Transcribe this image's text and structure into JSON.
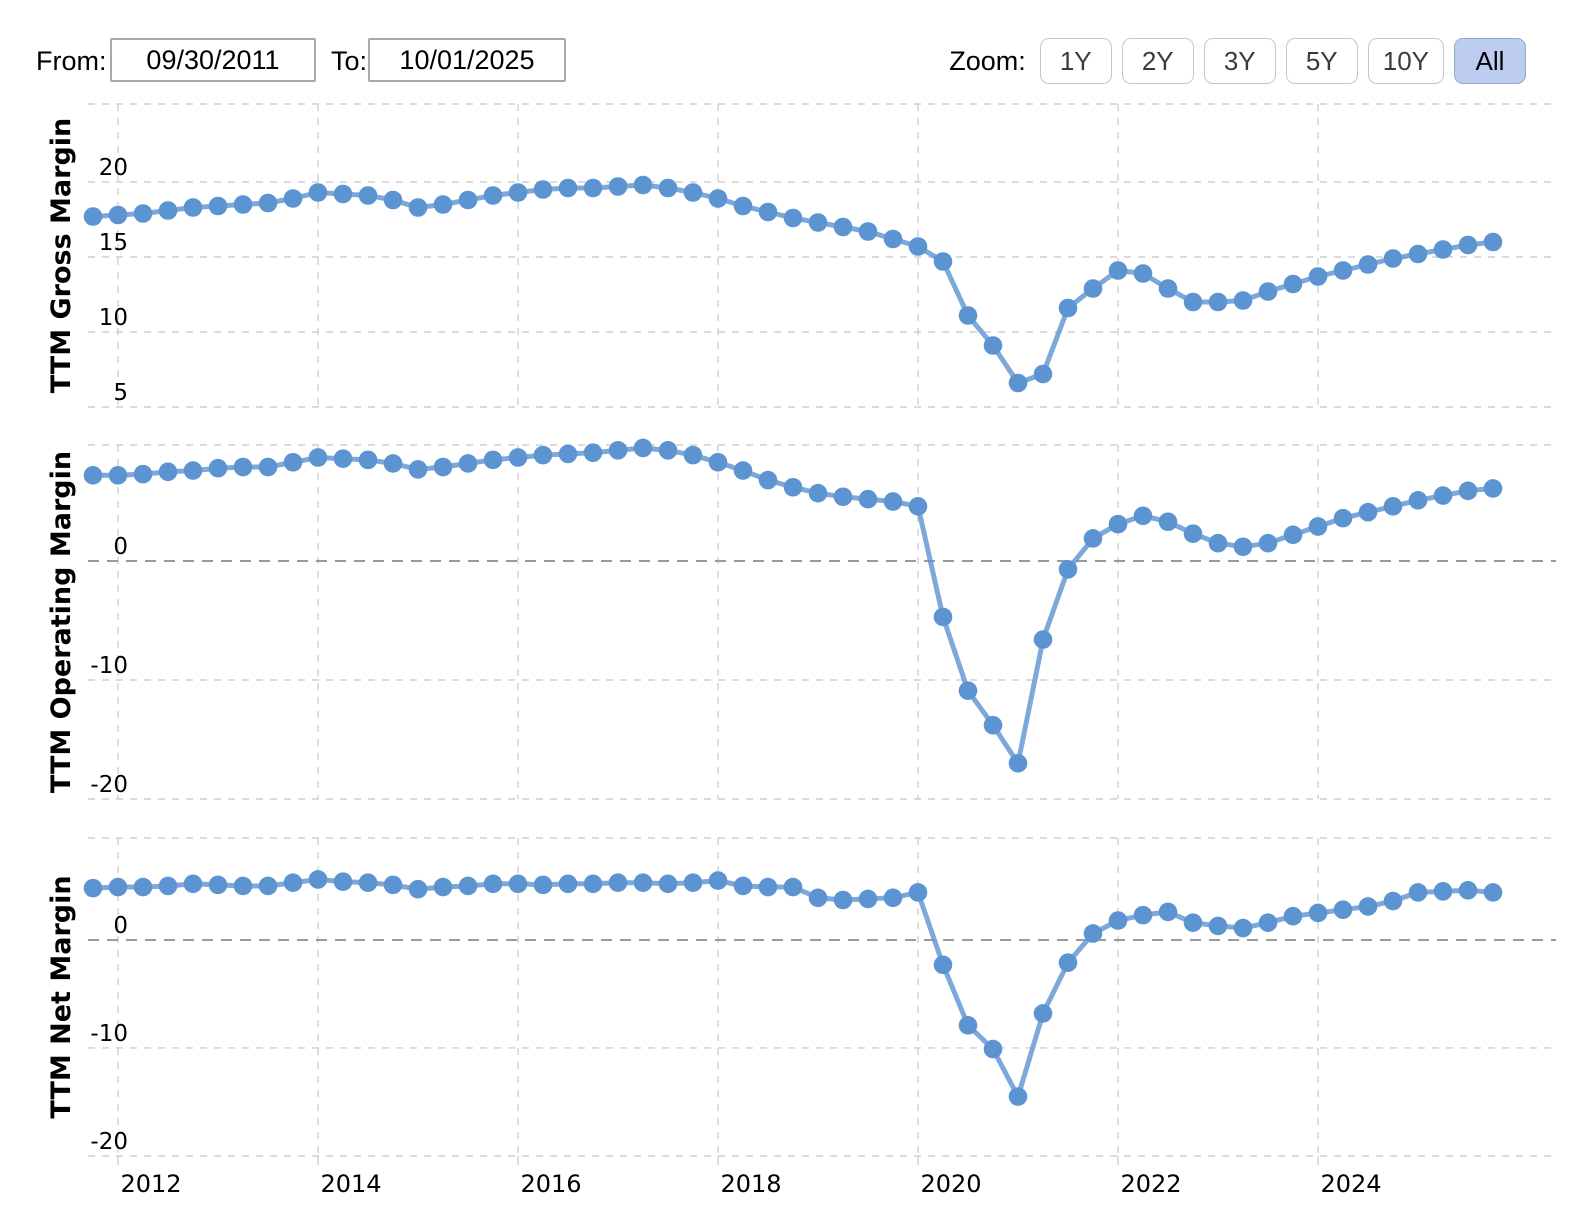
{
  "header": {
    "from_label": "From:",
    "from_value": "09/30/2011",
    "to_label": "To:",
    "to_value": "10/01/2025",
    "zoom_label": "Zoom:",
    "zoom_buttons": [
      {
        "label": "1Y",
        "active": false
      },
      {
        "label": "2Y",
        "active": false
      },
      {
        "label": "3Y",
        "active": false
      },
      {
        "label": "5Y",
        "active": false
      },
      {
        "label": "10Y",
        "active": false
      },
      {
        "label": "All",
        "active": true
      }
    ],
    "active_button_color": "#bccdf1"
  },
  "chart_data": {
    "type": "line",
    "series_color": "#5b94d1",
    "grid_color": "#cfcfcf",
    "zero_line_color": "#9a9a9a",
    "x_unit": "quarter-end dates, TTM values",
    "xticks": [
      2012,
      2014,
      2016,
      2018,
      2020,
      2022,
      2024
    ],
    "xlim": [
      2011.45,
      2026.1
    ],
    "legend": "none",
    "x_years": [
      2011.75,
      2012.0,
      2012.25,
      2012.5,
      2012.75,
      2013.0,
      2013.25,
      2013.5,
      2013.75,
      2014.0,
      2014.25,
      2014.5,
      2014.75,
      2015.0,
      2015.25,
      2015.5,
      2015.75,
      2016.0,
      2016.25,
      2016.5,
      2016.75,
      2017.0,
      2017.25,
      2017.5,
      2017.75,
      2018.0,
      2018.25,
      2018.5,
      2018.75,
      2019.0,
      2019.25,
      2019.5,
      2019.75,
      2020.0,
      2020.25,
      2020.5,
      2020.75,
      2021.0,
      2021.25,
      2021.5,
      2021.75,
      2022.0,
      2022.25,
      2022.5,
      2022.75,
      2023.0,
      2023.25,
      2023.5,
      2023.75,
      2024.0,
      2024.25,
      2024.5,
      2024.75,
      2025.0,
      2025.25,
      2025.5,
      2025.75
    ],
    "charts": [
      {
        "ylabel": "TTM Gross Margin",
        "yticks": [
          20,
          15,
          10,
          5
        ],
        "ylim": [
          5,
          25.2
        ],
        "values": [
          17.7,
          17.8,
          17.9,
          18.1,
          18.3,
          18.4,
          18.5,
          18.6,
          18.9,
          19.3,
          19.2,
          19.1,
          18.8,
          18.3,
          18.5,
          18.8,
          19.1,
          19.3,
          19.5,
          19.6,
          19.6,
          19.7,
          19.8,
          19.6,
          19.3,
          18.9,
          18.4,
          18.0,
          17.6,
          17.3,
          17.0,
          16.7,
          16.2,
          15.7,
          14.7,
          11.1,
          9.1,
          6.6,
          7.2,
          11.6,
          12.9,
          14.1,
          13.9,
          12.9,
          12.0,
          12.0,
          12.1,
          12.7,
          13.2,
          13.7,
          14.1,
          14.5,
          14.9,
          15.2,
          15.5,
          15.8,
          16.0
        ]
      },
      {
        "ylabel": "TTM Operating Margin",
        "yticks": [
          0,
          -10,
          -20
        ],
        "ylim": [
          -20,
          9.75
        ],
        "values": [
          7.2,
          7.2,
          7.3,
          7.5,
          7.6,
          7.8,
          7.9,
          7.9,
          8.3,
          8.7,
          8.6,
          8.5,
          8.2,
          7.7,
          7.9,
          8.2,
          8.5,
          8.7,
          8.9,
          9.0,
          9.1,
          9.3,
          9.5,
          9.3,
          8.9,
          8.3,
          7.6,
          6.8,
          6.2,
          5.7,
          5.4,
          5.2,
          5.0,
          4.6,
          -4.7,
          -10.9,
          -13.8,
          -17.0,
          -6.6,
          -0.7,
          1.9,
          3.1,
          3.8,
          3.3,
          2.3,
          1.5,
          1.2,
          1.5,
          2.2,
          2.9,
          3.6,
          4.1,
          4.6,
          5.1,
          5.5,
          5.9,
          6.1
        ]
      },
      {
        "ylabel": "TTM Net Margin",
        "yticks": [
          0,
          -10,
          -20
        ],
        "ylim": [
          -20,
          9.44
        ],
        "values": [
          4.8,
          4.9,
          4.9,
          5.0,
          5.2,
          5.1,
          5.0,
          5.0,
          5.3,
          5.6,
          5.4,
          5.3,
          5.1,
          4.7,
          4.9,
          5.0,
          5.2,
          5.2,
          5.1,
          5.2,
          5.2,
          5.3,
          5.3,
          5.2,
          5.3,
          5.5,
          5.0,
          4.9,
          4.9,
          3.9,
          3.7,
          3.8,
          3.9,
          4.4,
          -2.3,
          -7.9,
          -10.1,
          -14.5,
          -6.8,
          -2.1,
          0.6,
          1.8,
          2.3,
          2.6,
          1.6,
          1.3,
          1.1,
          1.6,
          2.2,
          2.5,
          2.8,
          3.1,
          3.6,
          4.4,
          4.5,
          4.6,
          4.4
        ]
      }
    ]
  }
}
